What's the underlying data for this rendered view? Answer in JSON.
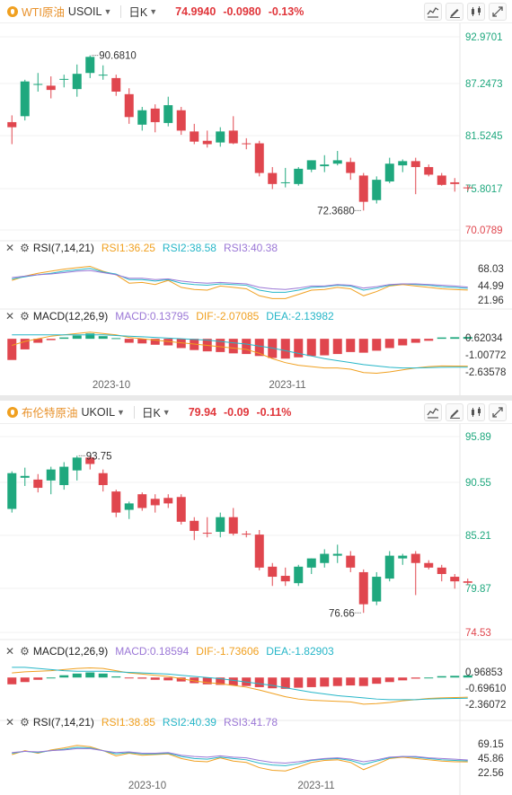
{
  "charts": [
    {
      "name_label": "WTI原油",
      "code": "USOIL",
      "period": "日K",
      "price": "74.9940",
      "change": "-0.0980",
      "change_pct": "-0.13%",
      "price_axis": [
        "92.9701",
        "87.2473",
        "81.5245",
        "75.8017",
        "70.0789"
      ],
      "ylim": [
        70.0789,
        92.9701
      ],
      "high_label": "90.6810",
      "low_label": "72.3680",
      "rsi": {
        "label": "RSI(7,14,21)",
        "v1": "RSI1:36.25",
        "v2": "RSI2:38.58",
        "v3": "RSI3:40.38",
        "axis": [
          "68.03",
          "44.99",
          "21.96"
        ],
        "ylim": [
          21.96,
          68.03
        ]
      },
      "macd": {
        "label": "MACD(12,26,9)",
        "v1": "MACD:0.13795",
        "v2": "DIF:-2.07085",
        "v3": "DEA:-2.13982",
        "axis": [
          "0.62034",
          "-1.00772",
          "-2.63578"
        ],
        "ylim": [
          -2.63578,
          0.62034
        ]
      },
      "x_labels": [
        "2023-10",
        "2023-11"
      ]
    },
    {
      "name_label": "布伦特原油",
      "code": "UKOIL",
      "period": "日K",
      "price": "79.94",
      "change": "-0.09",
      "change_pct": "-0.11%",
      "price_axis": [
        "95.89",
        "90.55",
        "85.21",
        "79.87",
        "74.53"
      ],
      "ylim": [
        74.53,
        95.89
      ],
      "high_label": "93.75",
      "low_label": "76.66",
      "rsi": {
        "label": "RSI(7,14,21)",
        "v1": "RSI1:38.85",
        "v2": "RSI2:40.39",
        "v3": "RSI3:41.78",
        "axis": [
          "69.15",
          "45.86",
          "22.56"
        ],
        "ylim": [
          22.56,
          69.15
        ]
      },
      "macd": {
        "label": "MACD(12,26,9)",
        "v1": "MACD:0.18594",
        "v2": "DIF:-1.73606",
        "v3": "DEA:-1.82903",
        "axis": [
          "0.96853",
          "-0.69610",
          "-2.36072"
        ],
        "ylim": [
          -2.36072,
          0.96853
        ]
      },
      "x_labels": [
        "2023-10",
        "2023-11"
      ]
    }
  ],
  "colors": {
    "up": "#1fa87e",
    "down": "#e0464e",
    "rsi1": "#f0a020",
    "rsi2": "#26b6c8",
    "rsi3": "#9b77d6",
    "dif": "#f0a020",
    "dea": "#26b6c8"
  },
  "chart_data": [
    {
      "type": "candlestick",
      "title": "WTI原油 USOIL 日K",
      "ylim": [
        70.0789,
        92.9701
      ],
      "candles": [
        {
          "o": 82.8,
          "h": 83.6,
          "l": 80.2,
          "c": 82.2
        },
        {
          "o": 83.5,
          "h": 87.8,
          "l": 83.0,
          "c": 87.6
        },
        {
          "o": 87.3,
          "h": 88.6,
          "l": 86.4,
          "c": 87.3
        },
        {
          "o": 87.1,
          "h": 88.2,
          "l": 85.6,
          "c": 86.6
        },
        {
          "o": 87.8,
          "h": 88.4,
          "l": 86.9,
          "c": 87.9
        },
        {
          "o": 86.7,
          "h": 89.6,
          "l": 85.8,
          "c": 88.5
        },
        {
          "o": 88.6,
          "h": 90.68,
          "l": 88.0,
          "c": 90.5
        },
        {
          "o": 88.4,
          "h": 89.5,
          "l": 87.8,
          "c": 88.4
        },
        {
          "o": 88.0,
          "h": 88.4,
          "l": 85.9,
          "c": 86.4
        },
        {
          "o": 86.1,
          "h": 86.8,
          "l": 82.6,
          "c": 83.4
        },
        {
          "o": 82.5,
          "h": 84.6,
          "l": 81.8,
          "c": 84.2
        },
        {
          "o": 84.4,
          "h": 84.9,
          "l": 81.6,
          "c": 82.8
        },
        {
          "o": 82.7,
          "h": 85.8,
          "l": 82.3,
          "c": 84.8
        },
        {
          "o": 84.2,
          "h": 84.6,
          "l": 81.3,
          "c": 81.8
        },
        {
          "o": 81.7,
          "h": 82.6,
          "l": 80.2,
          "c": 80.5
        },
        {
          "o": 80.6,
          "h": 81.8,
          "l": 79.8,
          "c": 80.2
        },
        {
          "o": 80.4,
          "h": 82.2,
          "l": 79.9,
          "c": 81.7
        },
        {
          "o": 81.8,
          "h": 83.5,
          "l": 80.2,
          "c": 80.3
        },
        {
          "o": 80.3,
          "h": 80.9,
          "l": 79.6,
          "c": 80.2
        },
        {
          "o": 80.3,
          "h": 80.6,
          "l": 76.4,
          "c": 76.8
        },
        {
          "o": 76.8,
          "h": 77.5,
          "l": 74.9,
          "c": 75.5
        },
        {
          "o": 75.6,
          "h": 77.4,
          "l": 75.1,
          "c": 75.7
        },
        {
          "o": 75.5,
          "h": 77.5,
          "l": 75.3,
          "c": 77.3
        },
        {
          "o": 77.2,
          "h": 78.3,
          "l": 76.9,
          "c": 78.3
        },
        {
          "o": 77.6,
          "h": 78.9,
          "l": 76.9,
          "c": 77.8
        },
        {
          "o": 77.9,
          "h": 79.4,
          "l": 77.7,
          "c": 78.3
        },
        {
          "o": 78.1,
          "h": 78.6,
          "l": 76.0,
          "c": 76.8
        },
        {
          "o": 76.5,
          "h": 76.8,
          "l": 72.37,
          "c": 73.4
        },
        {
          "o": 73.6,
          "h": 76.4,
          "l": 73.2,
          "c": 76.0
        },
        {
          "o": 75.8,
          "h": 78.6,
          "l": 75.6,
          "c": 77.9
        },
        {
          "o": 77.7,
          "h": 78.4,
          "l": 76.9,
          "c": 78.2
        },
        {
          "o": 78.2,
          "h": 78.6,
          "l": 74.3,
          "c": 77.5
        },
        {
          "o": 77.5,
          "h": 77.8,
          "l": 76.4,
          "c": 76.6
        },
        {
          "o": 76.5,
          "h": 76.8,
          "l": 75.3,
          "c": 75.4
        },
        {
          "o": 75.7,
          "h": 76.2,
          "l": 74.6,
          "c": 75.5
        },
        {
          "o": 75.1,
          "h": 75.4,
          "l": 74.7,
          "c": 74.99
        }
      ],
      "rsi": {
        "rsi1": [
          50,
          56,
          60,
          63,
          66,
          68,
          70,
          63,
          58,
          46,
          47,
          44,
          50,
          40,
          37,
          36,
          42,
          40,
          38,
          28,
          24,
          24,
          30,
          36,
          37,
          40,
          38,
          28,
          34,
          42,
          44,
          42,
          40,
          38,
          37,
          36.25
        ],
        "rsi2": [
          52,
          55,
          58,
          60,
          63,
          65,
          67,
          62,
          59,
          51,
          51,
          49,
          51,
          46,
          44,
          43,
          45,
          44,
          43,
          36,
          33,
          33,
          36,
          40,
          41,
          43,
          42,
          36,
          39,
          43,
          45,
          44,
          43,
          41,
          40,
          38.58
        ],
        "rsi3": [
          54,
          56,
          58,
          59,
          61,
          63,
          64,
          61,
          58,
          53,
          53,
          51,
          52,
          49,
          47,
          46,
          47,
          46,
          45,
          40,
          38,
          37,
          39,
          42,
          42,
          44,
          43,
          39,
          41,
          44,
          45,
          45,
          44,
          43,
          42,
          40.38
        ]
      },
      "macd": {
        "hist": [
          -1.6,
          -0.8,
          -0.3,
          -0.1,
          0.1,
          0.25,
          0.4,
          0.2,
          0.05,
          -0.3,
          -0.35,
          -0.45,
          -0.5,
          -0.7,
          -0.85,
          -0.95,
          -1.0,
          -1.1,
          -1.15,
          -1.3,
          -1.45,
          -1.5,
          -1.4,
          -1.3,
          -1.25,
          -1.15,
          -1.0,
          -1.05,
          -0.9,
          -0.7,
          -0.5,
          -0.3,
          -0.15,
          0.1,
          0.12,
          0.13795
        ],
        "dif": [
          -0.5,
          -0.2,
          0.0,
          0.2,
          0.3,
          0.4,
          0.5,
          0.4,
          0.3,
          0.1,
          0.0,
          -0.1,
          -0.2,
          -0.3,
          -0.4,
          -0.5,
          -0.6,
          -0.7,
          -0.8,
          -1.1,
          -1.5,
          -1.8,
          -2.0,
          -2.1,
          -2.2,
          -2.2,
          -2.3,
          -2.55,
          -2.6,
          -2.5,
          -2.35,
          -2.2,
          -2.1,
          -2.05,
          -2.06,
          -2.07085
        ],
        "dea": [
          0.3,
          0.3,
          0.3,
          0.3,
          0.3,
          0.3,
          0.3,
          0.3,
          0.25,
          0.2,
          0.15,
          0.1,
          0.05,
          0.0,
          -0.05,
          -0.1,
          -0.2,
          -0.3,
          -0.4,
          -0.55,
          -0.7,
          -0.9,
          -1.1,
          -1.3,
          -1.5,
          -1.65,
          -1.8,
          -1.95,
          -2.05,
          -2.15,
          -2.2,
          -2.2,
          -2.18,
          -2.15,
          -2.14,
          -2.13982
        ]
      }
    },
    {
      "type": "candlestick",
      "title": "布伦特原油 UKOIL 日K",
      "ylim": [
        74.53,
        95.89
      ],
      "candles": [
        {
          "o": 88.0,
          "h": 92.1,
          "l": 87.6,
          "c": 91.9
        },
        {
          "o": 91.4,
          "h": 92.5,
          "l": 90.5,
          "c": 91.6
        },
        {
          "o": 91.2,
          "h": 91.8,
          "l": 89.8,
          "c": 90.3
        },
        {
          "o": 91.1,
          "h": 92.6,
          "l": 89.6,
          "c": 92.3
        },
        {
          "o": 90.6,
          "h": 93.1,
          "l": 90.1,
          "c": 92.6
        },
        {
          "o": 92.2,
          "h": 93.8,
          "l": 91.1,
          "c": 93.6
        },
        {
          "o": 93.6,
          "h": 93.75,
          "l": 92.3,
          "c": 92.9
        },
        {
          "o": 91.9,
          "h": 92.3,
          "l": 89.9,
          "c": 90.6
        },
        {
          "o": 89.9,
          "h": 90.1,
          "l": 87.1,
          "c": 87.6
        },
        {
          "o": 87.9,
          "h": 88.8,
          "l": 86.9,
          "c": 88.6
        },
        {
          "o": 89.6,
          "h": 89.8,
          "l": 87.8,
          "c": 88.1
        },
        {
          "o": 89.1,
          "h": 89.6,
          "l": 87.6,
          "c": 88.4
        },
        {
          "o": 89.2,
          "h": 89.6,
          "l": 88.1,
          "c": 88.6
        },
        {
          "o": 89.3,
          "h": 89.6,
          "l": 86.3,
          "c": 86.6
        },
        {
          "o": 86.7,
          "h": 87.1,
          "l": 84.6,
          "c": 85.6
        },
        {
          "o": 85.4,
          "h": 87.1,
          "l": 84.9,
          "c": 85.3
        },
        {
          "o": 85.5,
          "h": 87.6,
          "l": 84.9,
          "c": 87.1
        },
        {
          "o": 87.1,
          "h": 88.1,
          "l": 85.1,
          "c": 85.3
        },
        {
          "o": 85.3,
          "h": 85.6,
          "l": 84.9,
          "c": 85.2
        },
        {
          "o": 85.2,
          "h": 85.7,
          "l": 81.3,
          "c": 81.6
        },
        {
          "o": 81.7,
          "h": 82.1,
          "l": 79.6,
          "c": 80.6
        },
        {
          "o": 80.7,
          "h": 81.6,
          "l": 79.6,
          "c": 80.1
        },
        {
          "o": 79.9,
          "h": 81.9,
          "l": 79.6,
          "c": 81.7
        },
        {
          "o": 81.6,
          "h": 82.6,
          "l": 80.9,
          "c": 82.6
        },
        {
          "o": 82.1,
          "h": 83.6,
          "l": 81.6,
          "c": 83.1
        },
        {
          "o": 82.9,
          "h": 84.1,
          "l": 82.1,
          "c": 83.1
        },
        {
          "o": 82.9,
          "h": 83.4,
          "l": 81.1,
          "c": 81.6
        },
        {
          "o": 81.1,
          "h": 81.4,
          "l": 76.66,
          "c": 77.6
        },
        {
          "o": 77.9,
          "h": 81.1,
          "l": 77.5,
          "c": 80.6
        },
        {
          "o": 80.4,
          "h": 83.4,
          "l": 80.1,
          "c": 82.9
        },
        {
          "o": 82.6,
          "h": 83.1,
          "l": 81.9,
          "c": 82.9
        },
        {
          "o": 83.1,
          "h": 83.4,
          "l": 78.6,
          "c": 82.1
        },
        {
          "o": 82.1,
          "h": 82.4,
          "l": 81.4,
          "c": 81.6
        },
        {
          "o": 81.6,
          "h": 81.9,
          "l": 80.1,
          "c": 80.9
        },
        {
          "o": 80.6,
          "h": 80.9,
          "l": 79.3,
          "c": 80.1
        },
        {
          "o": 80.1,
          "h": 80.4,
          "l": 79.7,
          "c": 79.94
        }
      ],
      "rsi": {
        "rsi1": [
          50,
          56,
          52,
          57,
          60,
          64,
          62,
          56,
          48,
          52,
          49,
          50,
          51,
          44,
          40,
          39,
          45,
          40,
          38,
          30,
          26,
          25,
          31,
          38,
          41,
          42,
          38,
          27,
          35,
          44,
          46,
          44,
          42,
          40,
          39,
          38.85
        ],
        "rsi2": [
          52,
          55,
          53,
          56,
          58,
          61,
          60,
          56,
          51,
          53,
          51,
          51,
          52,
          47,
          44,
          43,
          46,
          44,
          42,
          37,
          34,
          33,
          36,
          41,
          43,
          44,
          41,
          35,
          40,
          45,
          47,
          46,
          44,
          42,
          41,
          40.39
        ],
        "rsi3": [
          53,
          55,
          54,
          56,
          57,
          59,
          59,
          56,
          53,
          54,
          52,
          52,
          53,
          49,
          47,
          46,
          48,
          46,
          45,
          41,
          38,
          37,
          39,
          42,
          44,
          45,
          43,
          39,
          42,
          46,
          47,
          47,
          45,
          44,
          43,
          41.78
        ]
      },
      "macd": {
        "hist": [
          -0.6,
          -0.4,
          -0.2,
          0.0,
          0.2,
          0.35,
          0.45,
          0.35,
          0.1,
          -0.05,
          -0.1,
          -0.2,
          -0.25,
          -0.35,
          -0.5,
          -0.6,
          -0.65,
          -0.7,
          -0.75,
          -0.85,
          -0.95,
          -1.0,
          -0.9,
          -0.85,
          -0.8,
          -0.75,
          -0.7,
          -0.75,
          -0.55,
          -0.4,
          -0.25,
          -0.1,
          0.0,
          0.12,
          0.15,
          0.18594
        ],
        "dif": [
          0.4,
          0.5,
          0.55,
          0.6,
          0.7,
          0.8,
          0.85,
          0.8,
          0.6,
          0.4,
          0.3,
          0.2,
          0.1,
          -0.1,
          -0.3,
          -0.45,
          -0.55,
          -0.7,
          -0.85,
          -1.1,
          -1.4,
          -1.7,
          -1.9,
          -2.0,
          -2.05,
          -2.1,
          -2.15,
          -2.35,
          -2.3,
          -2.2,
          -2.05,
          -1.95,
          -1.85,
          -1.8,
          -1.77,
          -1.73606
        ],
        "dea": [
          0.9,
          0.9,
          0.8,
          0.7,
          0.6,
          0.55,
          0.55,
          0.55,
          0.5,
          0.45,
          0.4,
          0.35,
          0.3,
          0.2,
          0.1,
          0.0,
          -0.1,
          -0.25,
          -0.4,
          -0.55,
          -0.7,
          -0.9,
          -1.1,
          -1.3,
          -1.45,
          -1.6,
          -1.7,
          -1.8,
          -1.9,
          -1.95,
          -1.95,
          -1.95,
          -1.9,
          -1.87,
          -1.85,
          -1.82903
        ]
      }
    }
  ]
}
